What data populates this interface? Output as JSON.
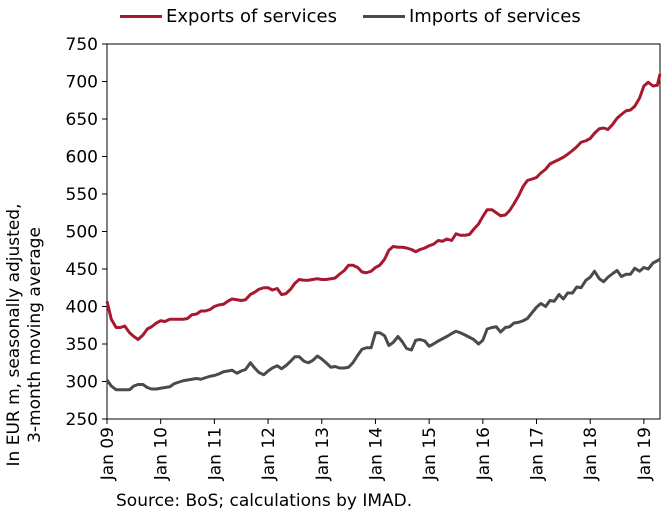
{
  "chart_data": {
    "type": "line",
    "ylabel": "In EUR m, seasonally adjusted, 3-month moving average",
    "xlabel": "",
    "ylim": [
      250,
      750
    ],
    "yticks": [
      250,
      300,
      350,
      400,
      450,
      500,
      550,
      600,
      650,
      700,
      750
    ],
    "xlim": [
      2009.0,
      2019.3
    ],
    "xticks": [
      {
        "label": "Jan 09",
        "x": 2009.0
      },
      {
        "label": "Jan 10",
        "x": 2010.0
      },
      {
        "label": "Jan 11",
        "x": 2011.0
      },
      {
        "label": "Jan 12",
        "x": 2012.0
      },
      {
        "label": "Jan 13",
        "x": 2013.0
      },
      {
        "label": "Jan 14",
        "x": 2014.0
      },
      {
        "label": "Jan 15",
        "x": 2015.0
      },
      {
        "label": "Jan 16",
        "x": 2016.0
      },
      {
        "label": "Jan 17",
        "x": 2017.0
      },
      {
        "label": "Jan 18",
        "x": 2018.0
      },
      {
        "label": "Jan 19",
        "x": 2019.0
      }
    ],
    "grid": false,
    "legend_position": "top",
    "series": [
      {
        "name": "Exports of services",
        "color": "#a6192e",
        "points": [
          [
            2009.0,
            407
          ],
          [
            2009.08,
            383
          ],
          [
            2009.17,
            372
          ],
          [
            2009.25,
            372
          ],
          [
            2009.33,
            374
          ],
          [
            2009.42,
            365
          ],
          [
            2009.5,
            360
          ],
          [
            2009.58,
            356
          ],
          [
            2009.67,
            362
          ],
          [
            2009.75,
            370
          ],
          [
            2009.83,
            373
          ],
          [
            2009.92,
            378
          ],
          [
            2010.0,
            381
          ],
          [
            2010.08,
            380
          ],
          [
            2010.17,
            383
          ],
          [
            2010.25,
            383
          ],
          [
            2010.33,
            383
          ],
          [
            2010.42,
            383
          ],
          [
            2010.5,
            384
          ],
          [
            2010.58,
            389
          ],
          [
            2010.67,
            390
          ],
          [
            2010.75,
            394
          ],
          [
            2010.83,
            394
          ],
          [
            2010.92,
            396
          ],
          [
            2011.0,
            400
          ],
          [
            2011.08,
            402
          ],
          [
            2011.17,
            403
          ],
          [
            2011.25,
            407
          ],
          [
            2011.33,
            410
          ],
          [
            2011.42,
            409
          ],
          [
            2011.5,
            408
          ],
          [
            2011.58,
            409
          ],
          [
            2011.67,
            416
          ],
          [
            2011.75,
            419
          ],
          [
            2011.83,
            423
          ],
          [
            2011.92,
            425
          ],
          [
            2012.0,
            425
          ],
          [
            2012.08,
            422
          ],
          [
            2012.17,
            424
          ],
          [
            2012.25,
            416
          ],
          [
            2012.33,
            417
          ],
          [
            2012.42,
            423
          ],
          [
            2012.5,
            431
          ],
          [
            2012.58,
            436
          ],
          [
            2012.67,
            435
          ],
          [
            2012.75,
            435
          ],
          [
            2012.83,
            436
          ],
          [
            2012.92,
            437
          ],
          [
            2013.0,
            436
          ],
          [
            2013.08,
            436
          ],
          [
            2013.17,
            437
          ],
          [
            2013.25,
            438
          ],
          [
            2013.33,
            443
          ],
          [
            2013.42,
            448
          ],
          [
            2013.5,
            455
          ],
          [
            2013.58,
            455
          ],
          [
            2013.67,
            452
          ],
          [
            2013.75,
            446
          ],
          [
            2013.83,
            445
          ],
          [
            2013.92,
            447
          ],
          [
            2014.0,
            452
          ],
          [
            2014.08,
            455
          ],
          [
            2014.17,
            463
          ],
          [
            2014.25,
            475
          ],
          [
            2014.33,
            480
          ],
          [
            2014.42,
            479
          ],
          [
            2014.5,
            479
          ],
          [
            2014.58,
            478
          ],
          [
            2014.67,
            476
          ],
          [
            2014.75,
            473
          ],
          [
            2014.83,
            476
          ],
          [
            2014.92,
            478
          ],
          [
            2015.0,
            481
          ],
          [
            2015.08,
            483
          ],
          [
            2015.17,
            488
          ],
          [
            2015.25,
            487
          ],
          [
            2015.33,
            490
          ],
          [
            2015.42,
            488
          ],
          [
            2015.5,
            497
          ],
          [
            2015.58,
            495
          ],
          [
            2015.67,
            495
          ],
          [
            2015.75,
            496
          ],
          [
            2015.83,
            503
          ],
          [
            2015.92,
            510
          ],
          [
            2016.0,
            520
          ],
          [
            2016.08,
            529
          ],
          [
            2016.17,
            529
          ],
          [
            2016.25,
            525
          ],
          [
            2016.33,
            521
          ],
          [
            2016.42,
            522
          ],
          [
            2016.5,
            528
          ],
          [
            2016.58,
            537
          ],
          [
            2016.67,
            548
          ],
          [
            2016.75,
            560
          ],
          [
            2016.83,
            568
          ],
          [
            2016.92,
            570
          ],
          [
            2017.0,
            572
          ],
          [
            2017.08,
            578
          ],
          [
            2017.17,
            583
          ],
          [
            2017.25,
            590
          ],
          [
            2017.33,
            593
          ],
          [
            2017.42,
            596
          ],
          [
            2017.5,
            599
          ],
          [
            2017.58,
            603
          ],
          [
            2017.67,
            608
          ],
          [
            2017.75,
            613
          ],
          [
            2017.83,
            619
          ],
          [
            2017.92,
            621
          ],
          [
            2018.0,
            624
          ],
          [
            2018.08,
            631
          ],
          [
            2018.17,
            637
          ],
          [
            2018.25,
            638
          ],
          [
            2018.33,
            636
          ],
          [
            2018.42,
            643
          ],
          [
            2018.5,
            651
          ],
          [
            2018.58,
            656
          ],
          [
            2018.67,
            661
          ],
          [
            2018.75,
            662
          ],
          [
            2018.83,
            667
          ],
          [
            2018.92,
            678
          ],
          [
            2019.0,
            694
          ],
          [
            2019.08,
            699
          ],
          [
            2019.17,
            694
          ],
          [
            2019.25,
            695
          ],
          [
            2019.3,
            710
          ]
        ]
      },
      {
        "name": "Imports of services",
        "color": "#4a4a4a",
        "points": [
          [
            2009.0,
            302
          ],
          [
            2009.08,
            294
          ],
          [
            2009.17,
            289
          ],
          [
            2009.25,
            289
          ],
          [
            2009.33,
            289
          ],
          [
            2009.42,
            289
          ],
          [
            2009.5,
            294
          ],
          [
            2009.58,
            296
          ],
          [
            2009.67,
            296
          ],
          [
            2009.75,
            292
          ],
          [
            2009.83,
            290
          ],
          [
            2009.92,
            290
          ],
          [
            2010.0,
            291
          ],
          [
            2010.08,
            292
          ],
          [
            2010.17,
            293
          ],
          [
            2010.25,
            297
          ],
          [
            2010.33,
            299
          ],
          [
            2010.42,
            301
          ],
          [
            2010.5,
            302
          ],
          [
            2010.58,
            303
          ],
          [
            2010.67,
            304
          ],
          [
            2010.75,
            303
          ],
          [
            2010.83,
            305
          ],
          [
            2010.92,
            307
          ],
          [
            2011.0,
            308
          ],
          [
            2011.08,
            310
          ],
          [
            2011.17,
            313
          ],
          [
            2011.25,
            314
          ],
          [
            2011.33,
            315
          ],
          [
            2011.42,
            311
          ],
          [
            2011.5,
            314
          ],
          [
            2011.58,
            316
          ],
          [
            2011.67,
            325
          ],
          [
            2011.75,
            318
          ],
          [
            2011.83,
            312
          ],
          [
            2011.92,
            309
          ],
          [
            2012.0,
            314
          ],
          [
            2012.08,
            318
          ],
          [
            2012.17,
            321
          ],
          [
            2012.25,
            317
          ],
          [
            2012.33,
            321
          ],
          [
            2012.42,
            327
          ],
          [
            2012.5,
            333
          ],
          [
            2012.58,
            333
          ],
          [
            2012.67,
            327
          ],
          [
            2012.75,
            325
          ],
          [
            2012.83,
            328
          ],
          [
            2012.92,
            334
          ],
          [
            2013.0,
            330
          ],
          [
            2013.08,
            325
          ],
          [
            2013.17,
            319
          ],
          [
            2013.25,
            320
          ],
          [
            2013.33,
            318
          ],
          [
            2013.42,
            318
          ],
          [
            2013.5,
            319
          ],
          [
            2013.58,
            325
          ],
          [
            2013.67,
            335
          ],
          [
            2013.75,
            343
          ],
          [
            2013.83,
            345
          ],
          [
            2013.92,
            345
          ],
          [
            2014.0,
            365
          ],
          [
            2014.08,
            365
          ],
          [
            2014.17,
            361
          ],
          [
            2014.25,
            348
          ],
          [
            2014.33,
            352
          ],
          [
            2014.42,
            360
          ],
          [
            2014.5,
            353
          ],
          [
            2014.58,
            344
          ],
          [
            2014.67,
            342
          ],
          [
            2014.75,
            355
          ],
          [
            2014.83,
            356
          ],
          [
            2014.92,
            354
          ],
          [
            2015.0,
            347
          ],
          [
            2015.08,
            350
          ],
          [
            2015.17,
            354
          ],
          [
            2015.25,
            357
          ],
          [
            2015.33,
            360
          ],
          [
            2015.42,
            364
          ],
          [
            2015.5,
            367
          ],
          [
            2015.58,
            365
          ],
          [
            2015.67,
            362
          ],
          [
            2015.75,
            359
          ],
          [
            2015.83,
            356
          ],
          [
            2015.92,
            350
          ],
          [
            2016.0,
            355
          ],
          [
            2016.08,
            370
          ],
          [
            2016.17,
            372
          ],
          [
            2016.25,
            373
          ],
          [
            2016.33,
            366
          ],
          [
            2016.42,
            372
          ],
          [
            2016.5,
            373
          ],
          [
            2016.58,
            378
          ],
          [
            2016.67,
            379
          ],
          [
            2016.75,
            381
          ],
          [
            2016.83,
            384
          ],
          [
            2016.92,
            392
          ],
          [
            2017.0,
            399
          ],
          [
            2017.08,
            404
          ],
          [
            2017.17,
            400
          ],
          [
            2017.25,
            408
          ],
          [
            2017.33,
            407
          ],
          [
            2017.42,
            416
          ],
          [
            2017.5,
            410
          ],
          [
            2017.58,
            418
          ],
          [
            2017.67,
            418
          ],
          [
            2017.75,
            426
          ],
          [
            2017.83,
            425
          ],
          [
            2017.92,
            435
          ],
          [
            2018.0,
            439
          ],
          [
            2018.08,
            447
          ],
          [
            2018.17,
            437
          ],
          [
            2018.25,
            433
          ],
          [
            2018.33,
            439
          ],
          [
            2018.42,
            444
          ],
          [
            2018.5,
            448
          ],
          [
            2018.58,
            440
          ],
          [
            2018.67,
            443
          ],
          [
            2018.75,
            443
          ],
          [
            2018.83,
            451
          ],
          [
            2018.92,
            447
          ],
          [
            2019.0,
            452
          ],
          [
            2019.08,
            450
          ],
          [
            2019.17,
            458
          ],
          [
            2019.25,
            461
          ],
          [
            2019.3,
            463
          ]
        ]
      }
    ]
  },
  "source_note": "Source: BoS; calculations by IMAD."
}
